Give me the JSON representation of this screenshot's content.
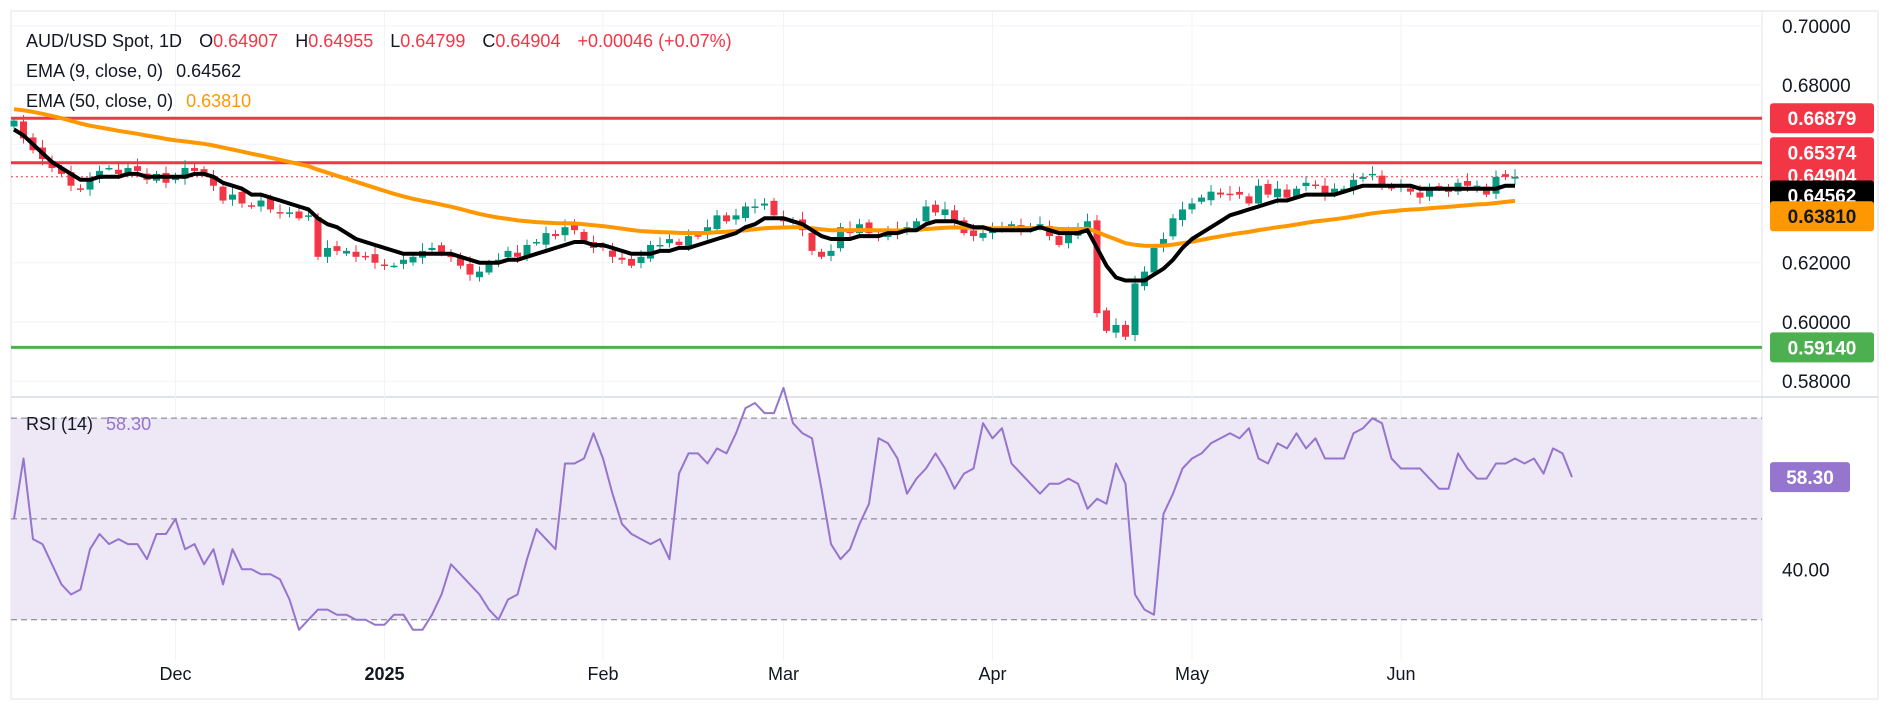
{
  "header": {
    "symbol": "AUD/USD Spot, 1D",
    "open_label": "O",
    "open": "0.64907",
    "high_label": "H",
    "high": "0.64955",
    "low_label": "L",
    "low": "0.64799",
    "close_label": "C",
    "close": "0.64904",
    "change": "+0.00046 (+0.07%)"
  },
  "indicators": {
    "ema9_label": "EMA (9, close, 0)",
    "ema9_value": "0.64562",
    "ema50_label": "EMA (50, close, 0)",
    "ema50_value": "0.63810",
    "rsi_label": "RSI (14)",
    "rsi_value": "58.30"
  },
  "colors": {
    "up": "#089981",
    "down": "#f23645",
    "ema9": "#000000",
    "ema50": "#ff9800",
    "resistance": "#f23645",
    "support": "#4caf50",
    "rsi": "#9575cd",
    "rsi_band": "#ede7f6"
  },
  "chart_data": [
    {
      "type": "candlestick",
      "title": "AUD/USD Spot, 1D",
      "x_ticks": [
        "Dec",
        "2025",
        "Feb",
        "Mar",
        "Apr",
        "May",
        "Jun"
      ],
      "y_ticks": [
        "0.70000",
        "0.68000",
        "0.62000",
        "0.60000",
        "0.58000"
      ],
      "ylim": [
        0.575,
        0.705
      ],
      "grid": true,
      "horizontal_lines": [
        {
          "label": "0.66879",
          "value": 0.66879,
          "color": "#f23645"
        },
        {
          "label": "0.65374",
          "value": 0.65374,
          "color": "#f23645"
        },
        {
          "label": "0.59140",
          "value": 0.5914,
          "color": "#4caf50"
        }
      ],
      "price_labels": [
        {
          "label": "0.64904",
          "value": 0.64904,
          "color": "#f23645"
        },
        {
          "label": "0.64562",
          "value": 0.64562,
          "color": "#000000"
        },
        {
          "label": "0.63810",
          "value": 0.6381,
          "color": "#ff9800"
        }
      ],
      "close_series": [
        0.668,
        0.662,
        0.658,
        0.655,
        0.652,
        0.65,
        0.646,
        0.645,
        0.648,
        0.651,
        0.652,
        0.65,
        0.652,
        0.651,
        0.648,
        0.65,
        0.647,
        0.649,
        0.652,
        0.651,
        0.65,
        0.646,
        0.641,
        0.643,
        0.64,
        0.639,
        0.641,
        0.638,
        0.637,
        0.637,
        0.635,
        0.636,
        0.622,
        0.625,
        0.624,
        0.624,
        0.622,
        0.622,
        0.62,
        0.619,
        0.619,
        0.621,
        0.622,
        0.624,
        0.625,
        0.623,
        0.622,
        0.619,
        0.616,
        0.617,
        0.62,
        0.621,
        0.624,
        0.622,
        0.626,
        0.627,
        0.63,
        0.629,
        0.632,
        0.631,
        0.627,
        0.625,
        0.625,
        0.622,
        0.621,
        0.619,
        0.622,
        0.626,
        0.626,
        0.628,
        0.626,
        0.629,
        0.629,
        0.632,
        0.636,
        0.634,
        0.636,
        0.639,
        0.639,
        0.64,
        0.636,
        0.634,
        0.634,
        0.631,
        0.624,
        0.622,
        0.624,
        0.632,
        0.63,
        0.633,
        0.63,
        0.629,
        0.631,
        0.63,
        0.632,
        0.634,
        0.639,
        0.637,
        0.638,
        0.634,
        0.63,
        0.629,
        0.63,
        0.631,
        0.632,
        0.633,
        0.631,
        0.632,
        0.633,
        0.629,
        0.626,
        0.63,
        0.632,
        0.634,
        0.603,
        0.597,
        0.599,
        0.595,
        0.613,
        0.617,
        0.625,
        0.628,
        0.635,
        0.638,
        0.64,
        0.642,
        0.644,
        0.643,
        0.643,
        0.643,
        0.64,
        0.646,
        0.643,
        0.645,
        0.642,
        0.645,
        0.647,
        0.646,
        0.643,
        0.645,
        0.645,
        0.648,
        0.649,
        0.65,
        0.646,
        0.645,
        0.646,
        0.644,
        0.642,
        0.645,
        0.645,
        0.644,
        0.647,
        0.646,
        0.646,
        0.643,
        0.649,
        0.649,
        0.649
      ],
      "ema9_series": [
        0.665,
        0.663,
        0.66,
        0.657,
        0.654,
        0.652,
        0.65,
        0.648,
        0.648,
        0.649,
        0.649,
        0.649,
        0.65,
        0.65,
        0.649,
        0.649,
        0.649,
        0.649,
        0.649,
        0.65,
        0.65,
        0.649,
        0.647,
        0.646,
        0.645,
        0.643,
        0.643,
        0.642,
        0.641,
        0.64,
        0.639,
        0.638,
        0.635,
        0.633,
        0.632,
        0.63,
        0.628,
        0.627,
        0.626,
        0.625,
        0.624,
        0.623,
        0.623,
        0.623,
        0.623,
        0.623,
        0.623,
        0.622,
        0.621,
        0.62,
        0.62,
        0.62,
        0.621,
        0.621,
        0.622,
        0.623,
        0.624,
        0.625,
        0.626,
        0.627,
        0.627,
        0.626,
        0.626,
        0.625,
        0.624,
        0.623,
        0.623,
        0.623,
        0.624,
        0.624,
        0.625,
        0.625,
        0.626,
        0.627,
        0.628,
        0.629,
        0.63,
        0.632,
        0.633,
        0.635,
        0.635,
        0.635,
        0.634,
        0.633,
        0.631,
        0.629,
        0.628,
        0.628,
        0.628,
        0.629,
        0.629,
        0.629,
        0.63,
        0.63,
        0.631,
        0.631,
        0.633,
        0.634,
        0.634,
        0.634,
        0.633,
        0.632,
        0.632,
        0.631,
        0.631,
        0.631,
        0.631,
        0.631,
        0.632,
        0.631,
        0.63,
        0.63,
        0.63,
        0.631,
        0.625,
        0.619,
        0.615,
        0.614,
        0.614,
        0.614,
        0.616,
        0.618,
        0.621,
        0.625,
        0.628,
        0.63,
        0.632,
        0.634,
        0.636,
        0.637,
        0.638,
        0.639,
        0.64,
        0.641,
        0.641,
        0.642,
        0.643,
        0.643,
        0.643,
        0.643,
        0.644,
        0.645,
        0.646,
        0.646,
        0.646,
        0.646,
        0.646,
        0.646,
        0.645,
        0.645,
        0.645,
        0.645,
        0.645,
        0.645,
        0.645,
        0.645,
        0.645,
        0.646,
        0.646
      ]
    },
    {
      "type": "line",
      "title": "RSI (14)",
      "y_ticks": [
        "40.00"
      ],
      "levels": [
        70,
        50,
        30
      ],
      "ylim": [
        22,
        74
      ],
      "value_label": "58.30",
      "values": [
        50,
        62,
        46,
        45,
        41,
        37,
        35,
        36,
        44,
        47,
        45,
        46,
        45,
        45,
        42,
        47,
        47,
        50,
        44,
        45,
        41,
        44,
        37,
        44,
        40,
        40,
        39,
        39,
        38,
        34,
        28,
        30,
        32,
        32,
        31,
        31,
        30,
        30,
        29,
        29,
        31,
        31,
        28,
        28,
        31,
        35,
        41,
        39,
        37,
        35,
        32,
        30,
        34,
        35,
        42,
        48,
        46,
        44,
        61,
        61,
        62,
        67,
        62,
        55,
        49,
        47,
        46,
        45,
        46,
        42,
        59,
        63,
        63,
        61,
        64,
        63,
        67,
        72,
        73,
        71,
        71,
        76,
        69,
        67,
        66,
        56,
        45,
        42,
        44,
        49,
        53,
        66,
        65,
        62,
        55,
        58,
        60,
        63,
        60,
        56,
        59,
        60,
        69,
        66,
        68,
        61,
        59,
        57,
        55,
        57,
        57,
        58,
        57,
        52,
        54,
        53,
        61,
        57,
        35,
        32,
        31,
        51,
        55,
        60,
        62,
        63,
        65,
        66,
        67,
        66,
        68,
        62,
        61,
        65,
        64,
        67,
        64,
        66,
        62,
        62,
        62,
        67,
        68,
        70,
        69,
        62,
        60,
        60,
        60,
        58,
        56,
        56,
        63,
        60,
        58,
        58,
        61,
        61,
        62,
        61,
        62,
        59,
        64,
        63,
        58.3
      ],
      "xlim": [
        -0.5,
        184
      ]
    }
  ]
}
